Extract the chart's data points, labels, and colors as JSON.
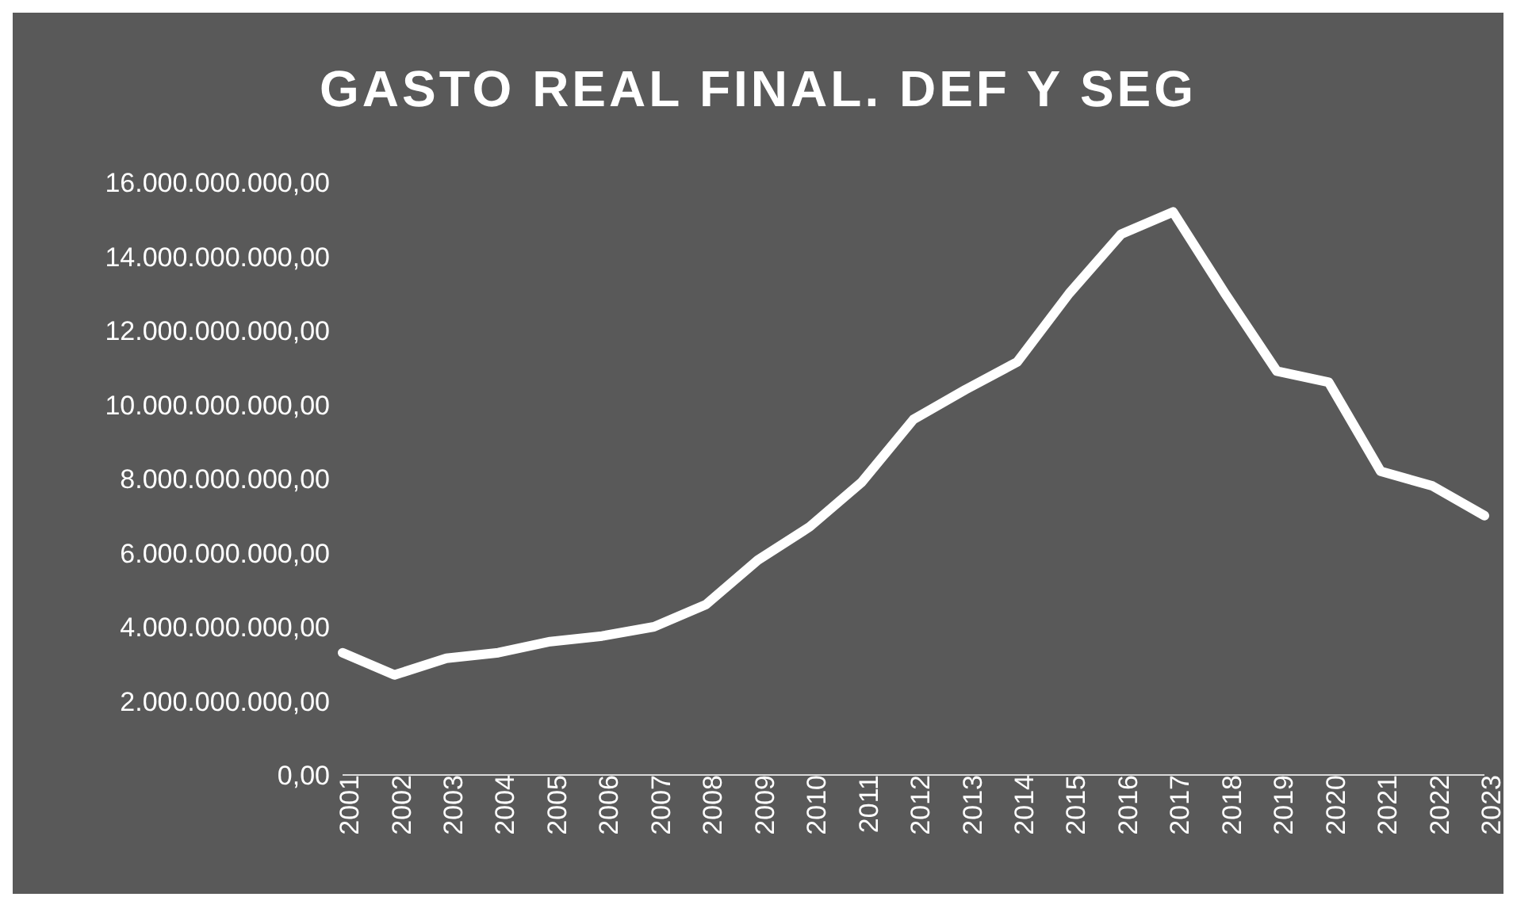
{
  "chart_data": {
    "type": "line",
    "title": "GASTO REAL FINAL. DEF Y SEG",
    "categories": [
      "2001",
      "2002",
      "2003",
      "2004",
      "2005",
      "2006",
      "2007",
      "2008",
      "2009",
      "2010",
      "2011",
      "2012",
      "2013",
      "2014",
      "2015",
      "2016",
      "2017",
      "2018",
      "2019",
      "2020",
      "2021",
      "2022",
      "2023"
    ],
    "series": [
      {
        "color": "#ffffff",
        "values": [
          3300000000,
          2700000000,
          3150000000,
          3300000000,
          3600000000,
          3750000000,
          4000000000,
          4600000000,
          5800000000,
          6700000000,
          7900000000,
          9600000000,
          10400000000,
          11150000000,
          13000000000,
          14600000000,
          15200000000,
          13000000000,
          10900000000,
          10600000000,
          8200000000,
          7800000000,
          7000000000
        ]
      }
    ],
    "ylim": [
      0,
      16000000000
    ],
    "yticks": [
      {
        "value": 0,
        "label": "0,00"
      },
      {
        "value": 2000000000,
        "label": "2.000.000.000,00"
      },
      {
        "value": 4000000000,
        "label": "4.000.000.000,00"
      },
      {
        "value": 6000000000,
        "label": "6.000.000.000,00"
      },
      {
        "value": 8000000000,
        "label": "8.000.000.000,00"
      },
      {
        "value": 10000000000,
        "label": "10.000.000.000,00"
      },
      {
        "value": 12000000000,
        "label": "12.000.000.000,00"
      },
      {
        "value": 14000000000,
        "label": "14.000.000.000,00"
      },
      {
        "value": 16000000000,
        "label": "16.000.000.000,00"
      }
    ],
    "grid": false,
    "legend": false,
    "line_style": "solid"
  }
}
